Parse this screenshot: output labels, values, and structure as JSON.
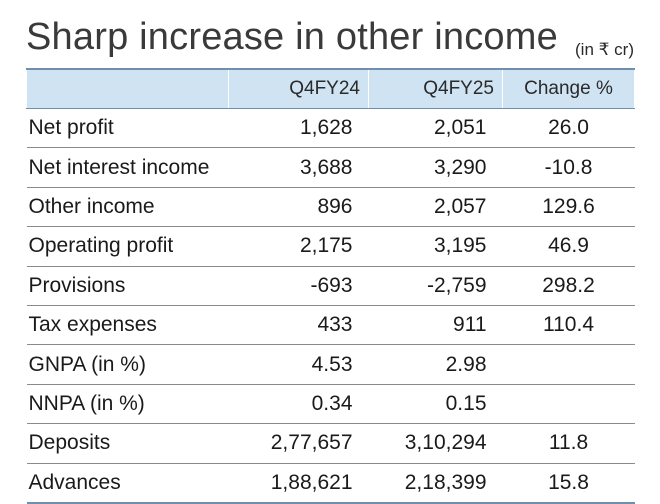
{
  "title": "Sharp increase in other income",
  "unit_note": "(in ₹ cr)",
  "columns": [
    "",
    "Q4FY24",
    "Q4FY25",
    "Change %"
  ],
  "rows": [
    {
      "label": "Net profit",
      "q4fy24": "1,628",
      "q4fy25": "2,051",
      "change": "26.0"
    },
    {
      "label": "Net interest income",
      "q4fy24": "3,688",
      "q4fy25": "3,290",
      "change": "-10.8"
    },
    {
      "label": "Other income",
      "q4fy24": "896",
      "q4fy25": "2,057",
      "change": "129.6"
    },
    {
      "label": "Operating profit",
      "q4fy24": "2,175",
      "q4fy25": "3,195",
      "change": "46.9"
    },
    {
      "label": "Provisions",
      "q4fy24": "-693",
      "q4fy25": "-2,759",
      "change": "298.2"
    },
    {
      "label": "Tax expenses",
      "q4fy24": "433",
      "q4fy25": "911",
      "change": "110.4"
    },
    {
      "label": "GNPA (in %)",
      "q4fy24": "4.53",
      "q4fy25": "2.98",
      "change": ""
    },
    {
      "label": "NNPA (in %)",
      "q4fy24": "0.34",
      "q4fy25": "0.15",
      "change": ""
    },
    {
      "label": "Deposits",
      "q4fy24": "2,77,657",
      "q4fy25": "3,10,294",
      "change": "11.8"
    },
    {
      "label": "Advances",
      "q4fy24": "1,88,621",
      "q4fy25": "2,18,399",
      "change": "15.8"
    }
  ],
  "colors": {
    "header_bg": "#cfe3f3",
    "rule": "#6f8fae",
    "row_divider": "#8a8a8a"
  },
  "chart_data": {
    "type": "table",
    "title": "Sharp increase in other income",
    "unit": "(in ₹ cr)",
    "columns": [
      "",
      "Q4FY24",
      "Q4FY25",
      "Change %"
    ],
    "categories": [
      "Net profit",
      "Net interest income",
      "Other income",
      "Operating profit",
      "Provisions",
      "Tax expenses",
      "GNPA (in %)",
      "NNPA (in %)",
      "Deposits",
      "Advances"
    ],
    "series": [
      {
        "name": "Q4FY24",
        "values": [
          1628,
          3688,
          896,
          2175,
          -693,
          433,
          4.53,
          0.34,
          277657,
          188621
        ]
      },
      {
        "name": "Q4FY25",
        "values": [
          2051,
          3290,
          2057,
          3195,
          -2759,
          911,
          2.98,
          0.15,
          310294,
          218399
        ]
      },
      {
        "name": "Change %",
        "values": [
          26.0,
          -10.8,
          129.6,
          46.9,
          298.2,
          110.4,
          null,
          null,
          11.8,
          15.8
        ]
      }
    ]
  }
}
